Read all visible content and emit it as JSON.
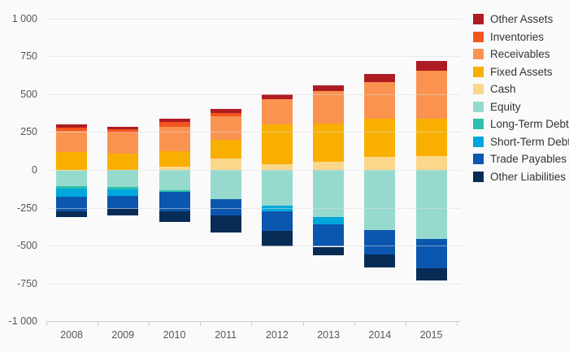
{
  "chart": {
    "background": "#FAFAFA",
    "grid_color": "#E9E9E9",
    "axis_line_color": "#C7CCD6",
    "tick_label_color": "#55565B",
    "legend_text_color": "#333333"
  },
  "chart_data": {
    "type": "bar",
    "stacked": true,
    "title": "",
    "xlabel": "",
    "ylabel": "",
    "grid": true,
    "legend_position": "right",
    "categories": [
      "2008",
      "2009",
      "2010",
      "2011",
      "2012",
      "2013",
      "2014",
      "2015"
    ],
    "y_axis": {
      "min": -1000,
      "max": 1000,
      "tick_step": 250,
      "tick_labels": [
        "1 000",
        "750",
        "500",
        "250",
        "0",
        "-250",
        "-500",
        "-750",
        "-1 000"
      ]
    },
    "stack_note": "Positive series stack upward from zero in order Cash, Fixed Assets, Receivables, Inventories, Other Assets (top); negative series stack downward in order Equity, Long-Term Debt, Short-Term Debt, Trade Payables, Other Liabilities (bottom).",
    "series": [
      {
        "name": "Other Assets",
        "slug": "other-assets",
        "color": "#AE1C23",
        "values": [
          20,
          16,
          21,
          27,
          32,
          36,
          54,
          64
        ]
      },
      {
        "name": "Inventories",
        "slug": "inventories",
        "color": "#F4551E",
        "values": [
          23,
          21,
          31,
          22,
          0,
          0,
          0,
          0
        ]
      },
      {
        "name": "Receivables",
        "slug": "receivables",
        "color": "#FB9350",
        "values": [
          140,
          140,
          163,
          155,
          167,
          215,
          240,
          316
        ]
      },
      {
        "name": "Fixed Assets",
        "slug": "fixed-assets",
        "color": "#F9AF00",
        "values": [
          115,
          108,
          100,
          120,
          260,
          251,
          255,
          250
        ]
      },
      {
        "name": "Cash",
        "slug": "cash",
        "color": "#FAD78B",
        "values": [
          2,
          0,
          23,
          77,
          39,
          56,
          84,
          90
        ]
      },
      {
        "name": "Equity",
        "slug": "equity",
        "color": "#95DACD",
        "values": [
          -105,
          -113,
          -133,
          -192,
          -238,
          -310,
          -398,
          -455
        ]
      },
      {
        "name": "Long-Term Debt",
        "slug": "long-term-debt",
        "color": "#2BC0AD",
        "values": [
          -20,
          -15,
          -13,
          0,
          0,
          0,
          0,
          0
        ]
      },
      {
        "name": "Short-Term Debt",
        "slug": "short-term-debt",
        "color": "#00A7DD",
        "values": [
          -52,
          -44,
          0,
          0,
          -36,
          -50,
          0,
          0
        ]
      },
      {
        "name": "Trade Payables",
        "slug": "trade-payables",
        "color": "#0B56AE",
        "values": [
          -95,
          -88,
          -128,
          -106,
          -129,
          -147,
          -158,
          -192
        ]
      },
      {
        "name": "Other Liabilities",
        "slug": "other-liabilities",
        "color": "#072C55",
        "values": [
          -40,
          -40,
          -68,
          -116,
          -104,
          -54,
          -90,
          -81
        ]
      }
    ]
  }
}
